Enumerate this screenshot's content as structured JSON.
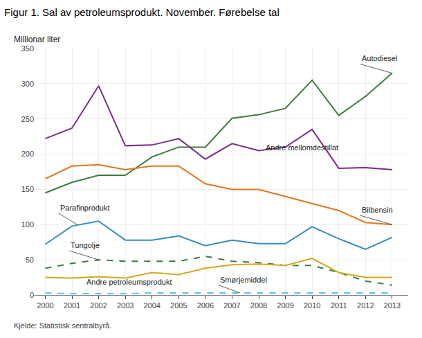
{
  "chart_data": {
    "type": "line",
    "title": "Figur 1. Sal av petroleumsprodukt. November. Førebelse tal",
    "ylabel": "Millionar liter",
    "source": "Kjelde: Statistisk sentralbyrå.",
    "x": [
      2000,
      2001,
      2002,
      2003,
      2004,
      2005,
      2006,
      2007,
      2008,
      2009,
      2010,
      2011,
      2012,
      2013
    ],
    "xlim": [
      1999.6,
      2013.6
    ],
    "xticks": [
      2000,
      2001,
      2002,
      2003,
      2004,
      2005,
      2006,
      2007,
      2008,
      2009,
      2010,
      2011,
      2012,
      2013
    ],
    "ylim": [
      0,
      350
    ],
    "yticks": [
      0,
      50,
      100,
      150,
      200,
      250,
      300,
      350
    ],
    "grid": true,
    "series": [
      {
        "name": "Autodiesel",
        "color": "#3a7d3a",
        "line_style": "solid",
        "values": [
          145,
          160,
          170,
          170,
          196,
          210,
          210,
          251,
          256,
          265,
          305,
          255,
          282,
          315
        ]
      },
      {
        "name": "Andre mellomdestillat",
        "color": "#7b2d8b",
        "line_style": "solid",
        "values": [
          222,
          237,
          297,
          212,
          213,
          222,
          193,
          215,
          205,
          210,
          235,
          180,
          181,
          178
        ]
      },
      {
        "name": "Bilbensin",
        "color": "#e07820",
        "line_style": "solid",
        "values": [
          165,
          183,
          185,
          178,
          183,
          183,
          158,
          150,
          150,
          140,
          130,
          120,
          103,
          100
        ]
      },
      {
        "name": "Parafinprodukt",
        "color": "#3a8abf",
        "line_style": "solid",
        "values": [
          72,
          98,
          105,
          78,
          78,
          84,
          70,
          78,
          73,
          73,
          97,
          80,
          65,
          82
        ]
      },
      {
        "name": "Tungolje",
        "color": "#3a7d3a",
        "line_style": "dashed",
        "values": [
          38,
          45,
          50,
          48,
          48,
          48,
          55,
          48,
          46,
          42,
          42,
          32,
          20,
          14
        ]
      },
      {
        "name": "Andre petroleumsprodukt",
        "color": "#d4a820",
        "line_style": "solid",
        "values": [
          25,
          24,
          26,
          24,
          32,
          29,
          38,
          43,
          44,
          42,
          52,
          32,
          25,
          25
        ]
      },
      {
        "name": "Smørjemiddel",
        "color": "#5bbfef",
        "line_style": "dashed",
        "values": [
          3,
          2,
          2,
          2,
          3,
          3,
          3,
          3,
          3,
          3,
          3,
          3,
          3,
          3
        ]
      }
    ],
    "annotations": [
      {
        "text": "Autodiesel",
        "xy": [
          2013,
          315
        ],
        "xytext": [
          2011.8,
          328
        ]
      },
      {
        "text": "Andre mellomdestillat",
        "xy": [
          2009.3,
          210
        ],
        "xytext": [
          2008.2,
          202
        ]
      },
      {
        "text": "Bilbensin",
        "xy": [
          2013,
          100
        ],
        "xytext": [
          2011.8,
          113
        ]
      },
      {
        "text": "Parafinprodukt",
        "xy": [
          2001.2,
          100
        ],
        "xytext": [
          2000.5,
          116
        ]
      },
      {
        "text": "Tungolje",
        "xy": [
          2002.0,
          50
        ],
        "xytext": [
          2000.9,
          63
        ]
      },
      {
        "text": "Andre petroleumsprodukt",
        "xy": [
          2003.2,
          24
        ],
        "xytext": [
          2001.5,
          11
        ]
      },
      {
        "text": "Smørjemiddel",
        "xy": [
          2007.3,
          3
        ],
        "xytext": [
          2006.5,
          14
        ]
      }
    ]
  }
}
